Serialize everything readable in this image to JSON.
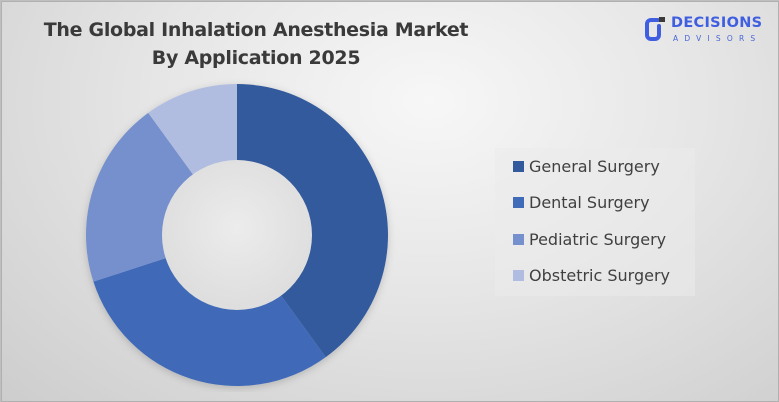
{
  "header": {
    "title_line1": "The Global Inhalation Anesthesia Market",
    "title_line2": "By Application 2025"
  },
  "logo": {
    "brand": "DECISIONS",
    "sub": "ADVISORS",
    "color": "#3f5fe0"
  },
  "legend": {
    "items": [
      {
        "label": "General Surgery",
        "color": "#335a9c"
      },
      {
        "label": "Dental Surgery",
        "color": "#3f6bb8"
      },
      {
        "label": "Pediatric Surgery",
        "color": "#7690ce"
      },
      {
        "label": "Obstetric Surgery",
        "color": "#b1bde0"
      }
    ]
  },
  "chart_data": {
    "type": "pie",
    "variant": "donut",
    "title": "The Global Inhalation Anesthesia Market By Application 2025",
    "categories": [
      "General Surgery",
      "Dental Surgery",
      "Pediatric Surgery",
      "Obstetric Surgery"
    ],
    "values": [
      40,
      30,
      20,
      10
    ],
    "colors": [
      "#335a9c",
      "#3f6bb8",
      "#7690ce",
      "#b1bde0"
    ],
    "legend_position": "right",
    "data_labels": false
  }
}
